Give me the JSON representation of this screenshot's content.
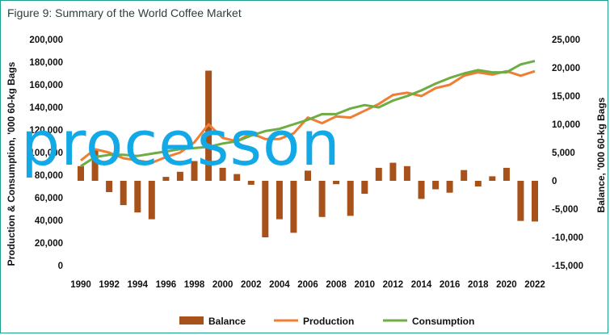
{
  "title": "Figure 9: Summary of the World Coffee Market",
  "overlay_text": "processon",
  "chart_data": {
    "type": "bar+line",
    "title": "Figure 9: Summary of the World Coffee Market",
    "ylabel_left": "Production & Consumption, '000 60-kg Bags",
    "ylabel_right": "Balance, '000 60-kg Bags",
    "ylim_left": [
      0,
      200000
    ],
    "ylim_right": [
      -15000,
      25000
    ],
    "yticks_left": [
      "200,000",
      "180,000",
      "160,000",
      "140,000",
      "120,000",
      "100,000",
      "80,000",
      "60,000",
      "40,000",
      "20,000",
      "0"
    ],
    "yticks_right": [
      "25,000",
      "20,000",
      "15,000",
      "10,000",
      "5,000",
      "0",
      "-5,000",
      "-10,000",
      "-15,000"
    ],
    "xtick_labels": [
      "1990",
      "1992",
      "1994",
      "1996",
      "1998",
      "2000",
      "2002",
      "2004",
      "2006",
      "2008",
      "2010",
      "2012",
      "2014",
      "2016",
      "2018",
      "2020",
      "2022"
    ],
    "x": [
      1990,
      1991,
      1992,
      1993,
      1994,
      1995,
      1996,
      1997,
      1998,
      1999,
      2000,
      2001,
      2002,
      2003,
      2004,
      2005,
      2006,
      2007,
      2008,
      2009,
      2010,
      2011,
      2012,
      2013,
      2014,
      2015,
      2016,
      2017,
      2018,
      2019,
      2020,
      2021,
      2022
    ],
    "series": [
      {
        "name": "Balance",
        "type": "bar",
        "color": "#a8521b",
        "axis": "right",
        "values": [
          2600,
          5500,
          -2000,
          -4300,
          -5600,
          -6800,
          700,
          1600,
          3500,
          19500,
          2300,
          1200,
          -700,
          -10000,
          -6800,
          -9200,
          1800,
          -6400,
          -600,
          -6200,
          -2300,
          2300,
          3200,
          2600,
          -3200,
          -1500,
          -2100,
          1900,
          -1000,
          800,
          2300,
          -7100,
          -7200
        ]
      },
      {
        "name": "Production",
        "type": "line",
        "color": "#ef7d33",
        "axis": "left",
        "values": [
          93000,
          103000,
          100000,
          95000,
          93000,
          91000,
          96000,
          100000,
          109000,
          125000,
          113000,
          110000,
          117000,
          112000,
          112000,
          117000,
          131000,
          126000,
          132000,
          131000,
          137000,
          143000,
          151000,
          153000,
          150000,
          157000,
          160000,
          168000,
          171000,
          169000,
          172000,
          168000,
          172000
        ]
      },
      {
        "name": "Consumption",
        "type": "line",
        "color": "#6eac44",
        "axis": "left",
        "values": [
          88000,
          96000,
          98000,
          98000,
          97000,
          99000,
          101000,
          103000,
          104000,
          105000,
          108000,
          110000,
          115000,
          119000,
          121000,
          125000,
          129000,
          134000,
          134000,
          139000,
          142000,
          140000,
          146000,
          150000,
          155000,
          161000,
          166000,
          170000,
          173000,
          171000,
          171000,
          178000,
          181000
        ]
      }
    ],
    "legend_position": "bottom",
    "grid": false
  }
}
